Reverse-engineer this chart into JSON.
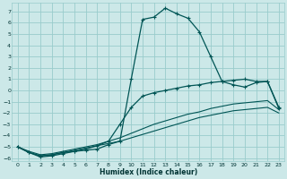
{
  "xlabel": "Humidex (Indice chaleur)",
  "background_color": "#cce8e8",
  "grid_color": "#99cccc",
  "line_color": "#005555",
  "xlim": [
    -0.5,
    23.5
  ],
  "ylim": [
    -6.3,
    7.8
  ],
  "x_ticks": [
    0,
    1,
    2,
    3,
    4,
    5,
    6,
    7,
    8,
    9,
    10,
    11,
    12,
    13,
    14,
    15,
    16,
    17,
    18,
    19,
    20,
    21,
    22,
    23
  ],
  "y_ticks": [
    -6,
    -5,
    -4,
    -3,
    -2,
    -1,
    0,
    1,
    2,
    3,
    4,
    5,
    6,
    7
  ],
  "series": [
    {
      "x": [
        0,
        1,
        2,
        3,
        4,
        5,
        6,
        7,
        8,
        9,
        10,
        11,
        12,
        13,
        14,
        15,
        16,
        17,
        18,
        19,
        20,
        21,
        22,
        23
      ],
      "y": [
        -5.0,
        -5.5,
        -5.9,
        -5.8,
        -5.6,
        -5.4,
        -5.3,
        -5.2,
        -4.8,
        -4.5,
        1.0,
        6.3,
        6.5,
        7.3,
        6.8,
        6.4,
        5.2,
        3.0,
        0.8,
        0.5,
        0.3,
        0.7,
        0.8,
        -1.6
      ],
      "marker": "+",
      "markersize": 3.5,
      "linewidth": 0.9
    },
    {
      "x": [
        0,
        1,
        2,
        3,
        4,
        5,
        6,
        7,
        8,
        9,
        10,
        11,
        12,
        13,
        14,
        15,
        16,
        17,
        18,
        19,
        20,
        21,
        22,
        23
      ],
      "y": [
        -5.0,
        -5.5,
        -5.8,
        -5.7,
        -5.5,
        -5.4,
        -5.2,
        -4.9,
        -4.5,
        -3.0,
        -1.5,
        -0.5,
        -0.2,
        0.0,
        0.2,
        0.4,
        0.5,
        0.7,
        0.8,
        0.9,
        1.0,
        0.8,
        0.8,
        -1.5
      ],
      "marker": "+",
      "markersize": 3.5,
      "linewidth": 0.9
    },
    {
      "x": [
        0,
        1,
        2,
        3,
        4,
        5,
        6,
        7,
        8,
        9,
        10,
        11,
        12,
        13,
        14,
        15,
        16,
        17,
        18,
        19,
        20,
        21,
        22,
        23
      ],
      "y": [
        -5.0,
        -5.4,
        -5.7,
        -5.6,
        -5.4,
        -5.2,
        -5.0,
        -4.8,
        -4.5,
        -4.2,
        -3.8,
        -3.4,
        -3.0,
        -2.7,
        -2.4,
        -2.1,
        -1.9,
        -1.6,
        -1.4,
        -1.2,
        -1.1,
        -1.0,
        -0.9,
        -1.7
      ],
      "marker": null,
      "markersize": 0,
      "linewidth": 0.8
    },
    {
      "x": [
        0,
        1,
        2,
        3,
        4,
        5,
        6,
        7,
        8,
        9,
        10,
        11,
        12,
        13,
        14,
        15,
        16,
        17,
        18,
        19,
        20,
        21,
        22,
        23
      ],
      "y": [
        -5.0,
        -5.5,
        -5.8,
        -5.7,
        -5.5,
        -5.3,
        -5.1,
        -4.9,
        -4.7,
        -4.5,
        -4.2,
        -3.9,
        -3.6,
        -3.3,
        -3.0,
        -2.7,
        -2.4,
        -2.2,
        -2.0,
        -1.8,
        -1.7,
        -1.6,
        -1.5,
        -2.0
      ],
      "marker": null,
      "markersize": 0,
      "linewidth": 0.8
    }
  ]
}
